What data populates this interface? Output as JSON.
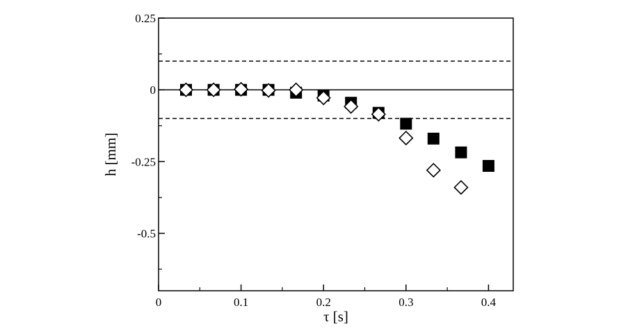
{
  "chart_data": {
    "type": "scatter",
    "xlabel": "τ [s]",
    "ylabel": "h [mm]",
    "xlim": [
      0,
      0.43
    ],
    "ylim": [
      -0.7,
      0.25
    ],
    "x_ticks": [
      0,
      0.1,
      0.2,
      0.3,
      0.4
    ],
    "x_tick_labels": [
      "0",
      "0.1",
      "0.2",
      "0.3",
      "0.4"
    ],
    "y_ticks": [
      -0.5,
      -0.25,
      0,
      0.25
    ],
    "y_tick_labels": [
      "-0.5",
      "-0.25",
      "0",
      "0.25"
    ],
    "reference_lines": [
      {
        "y": 0.1,
        "style": "dashed"
      },
      {
        "y": 0,
        "style": "solid"
      },
      {
        "y": -0.1,
        "style": "dashed"
      }
    ],
    "series": [
      {
        "marker": "filled-square",
        "color": "#000000",
        "x": [
          0.0333,
          0.0667,
          0.1,
          0.1333,
          0.1667,
          0.2,
          0.2333,
          0.2667,
          0.3,
          0.3333,
          0.3667,
          0.4
        ],
        "y": [
          0.0,
          0.0,
          0.0,
          0.0,
          -0.01,
          -0.02,
          -0.045,
          -0.08,
          -0.118,
          -0.17,
          -0.218,
          -0.265
        ]
      },
      {
        "marker": "open-diamond",
        "color": "#000000",
        "x": [
          0.0333,
          0.0667,
          0.1,
          0.1333,
          0.1667,
          0.2,
          0.2333,
          0.2667,
          0.3,
          0.3333,
          0.3667
        ],
        "y": [
          0.0,
          0.0,
          0.002,
          -0.002,
          0.0,
          -0.028,
          -0.058,
          -0.085,
          -0.168,
          -0.28,
          -0.34
        ]
      }
    ]
  }
}
